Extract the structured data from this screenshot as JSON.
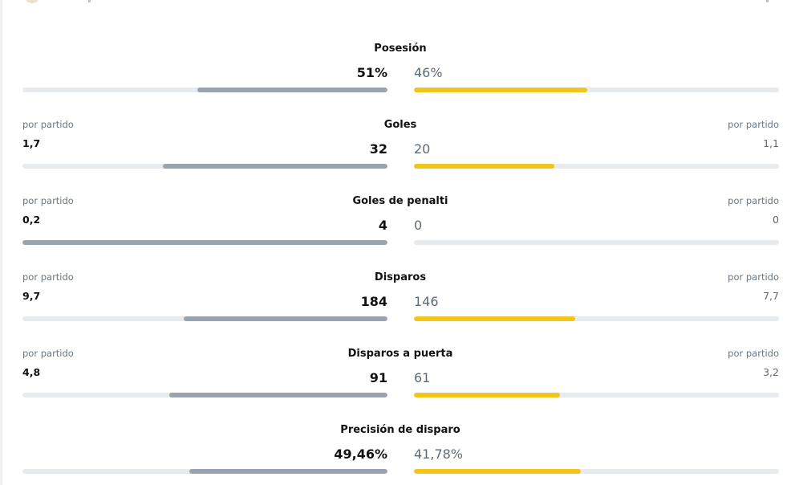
{
  "stats": [
    {
      "label": "Posesión",
      "home": "51%",
      "away": "46%",
      "home_fraction": 0.52,
      "away_fraction": 0.475
    },
    {
      "label": "Goles",
      "per_match_label": "por partido",
      "home": "32",
      "away": "20",
      "home_avg": "1,7",
      "away_avg": "1,1",
      "home_fraction": 0.615,
      "away_fraction": 0.385
    },
    {
      "label": "Goles de penalti",
      "per_match_label": "por partido",
      "home": "4",
      "away": "0",
      "home_avg": "0,2",
      "away_avg": "0",
      "home_fraction": 1.0,
      "away_fraction": 0.0
    },
    {
      "label": "Disparos",
      "per_match_label": "por partido",
      "home": "184",
      "away": "146",
      "home_avg": "9,7",
      "away_avg": "7,7",
      "home_fraction": 0.558,
      "away_fraction": 0.442
    },
    {
      "label": "Disparos a puerta",
      "per_match_label": "por partido",
      "home": "91",
      "away": "61",
      "home_avg": "4,8",
      "away_avg": "3,2",
      "home_fraction": 0.598,
      "away_fraction": 0.401
    },
    {
      "label": "Precisión de disparo",
      "home": "49,46%",
      "away": "41,78%",
      "home_fraction": 0.542,
      "away_fraction": 0.458
    }
  ],
  "colors": {
    "home_bar": "#9aa4ae",
    "away_bar": "#f2c51c",
    "track": "#e8ebee"
  }
}
